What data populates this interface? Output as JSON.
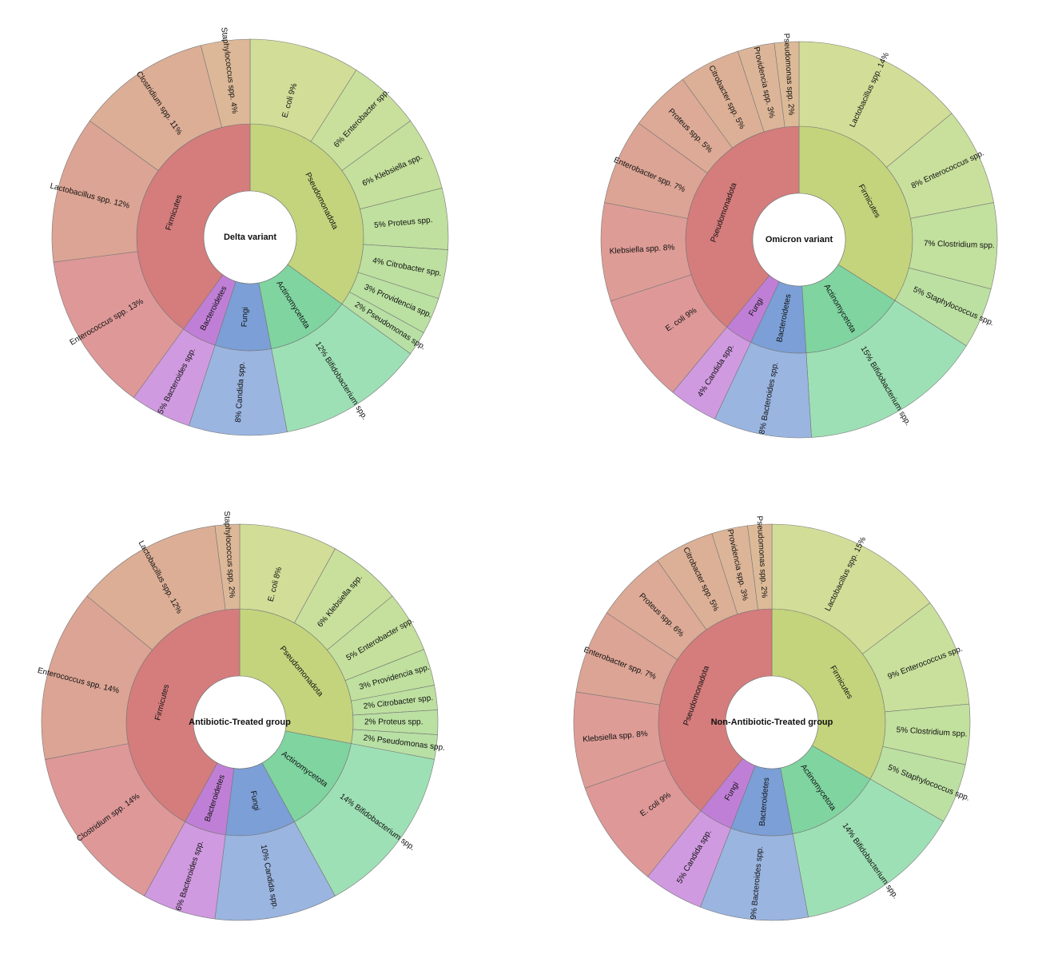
{
  "chart_data": [
    {
      "type": "sunburst",
      "title": "Delta variant",
      "inner": [
        {
          "name": "Pseudomonadota",
          "color": "#c3d47c"
        },
        {
          "name": "Actinomycetota",
          "color": "#7fd4a0"
        },
        {
          "name": "Fungi",
          "color": "#7b9fd6"
        },
        {
          "name": "Bacteroidetes",
          "color": "#c07fd6"
        },
        {
          "name": "Firmicutes",
          "color": "#d57c7c"
        }
      ],
      "outer": [
        {
          "label": "E. coli  9%",
          "value": 9,
          "parent": "Pseudomonadota",
          "color": "#d2dd98"
        },
        {
          "label": "6%  Enterobacter spp.",
          "value": 6,
          "parent": "Pseudomonadota",
          "color": "#c8e09c"
        },
        {
          "label": "6%  Klebsiella spp.",
          "value": 6,
          "parent": "Pseudomonadota",
          "color": "#c4e09c"
        },
        {
          "label": "5%  Proteus spp.",
          "value": 5,
          "parent": "Pseudomonadota",
          "color": "#bfe09e"
        },
        {
          "label": "4%  Citrobacter spp.",
          "value": 4,
          "parent": "Pseudomonadota",
          "color": "#bde0a0"
        },
        {
          "label": "3%  Providencia spp.",
          "value": 3,
          "parent": "Pseudomonadota",
          "color": "#bae0a2"
        },
        {
          "label": "2%  Pseudomonas spp.",
          "value": 2,
          "parent": "Pseudomonadota",
          "color": "#b8e0a4"
        },
        {
          "label": "12%  Bifidobacterium spp.",
          "value": 12,
          "parent": "Actinomycetota",
          "color": "#9ee0b5"
        },
        {
          "label": "8%  Candida spp.",
          "value": 8,
          "parent": "Fungi",
          "color": "#9ab5e0"
        },
        {
          "label": "5%  Bacteroides spp.",
          "value": 5,
          "parent": "Bacteroidetes",
          "color": "#d09ae0"
        },
        {
          "label": "Enterococcus spp.  13%",
          "value": 13,
          "parent": "Firmicutes",
          "color": "#de9898"
        },
        {
          "label": "Lactobacillus spp.  12%",
          "value": 12,
          "parent": "Firmicutes",
          "color": "#dca494"
        },
        {
          "label": "Clostridium spp.  11%",
          "value": 11,
          "parent": "Firmicutes",
          "color": "#dcae96"
        },
        {
          "label": "Staphylococcus spp.  4%",
          "value": 4,
          "parent": "Firmicutes",
          "color": "#dcb898"
        }
      ]
    },
    {
      "type": "sunburst",
      "title": "Omicron variant",
      "inner": [
        {
          "name": "Firmicutes",
          "color": "#c3d47c"
        },
        {
          "name": "Actinomycetota",
          "color": "#7fd4a0"
        },
        {
          "name": "Bacteroidetes",
          "color": "#7b9fd6"
        },
        {
          "name": "Fungi",
          "color": "#c07fd6"
        },
        {
          "name": "Pseudomonadota",
          "color": "#d57c7c"
        }
      ],
      "outer": [
        {
          "label": "Lactobacillus spp.  14%",
          "value": 14,
          "parent": "Firmicutes",
          "color": "#d2dd98"
        },
        {
          "label": "8%  Enterococcus spp.",
          "value": 8,
          "parent": "Firmicutes",
          "color": "#c8e09c"
        },
        {
          "label": "7%  Clostridium spp.",
          "value": 7,
          "parent": "Firmicutes",
          "color": "#c2e09e"
        },
        {
          "label": "5%  Staphylococcus spp.",
          "value": 5,
          "parent": "Firmicutes",
          "color": "#bce0a2"
        },
        {
          "label": "15%  Bifidobacterium spp.",
          "value": 15,
          "parent": "Actinomycetota",
          "color": "#9ee0b5"
        },
        {
          "label": "8%  Bacteroides spp.",
          "value": 8,
          "parent": "Bacteroidetes",
          "color": "#9ab5e0"
        },
        {
          "label": "4%  Candida spp.",
          "value": 4,
          "parent": "Fungi",
          "color": "#d09ae0"
        },
        {
          "label": "E. coli  9%",
          "value": 9,
          "parent": "Pseudomonadota",
          "color": "#de9898"
        },
        {
          "label": "Klebsiella spp.  8%",
          "value": 8,
          "parent": "Pseudomonadota",
          "color": "#de9c96"
        },
        {
          "label": "Enterobacter spp.  7%",
          "value": 7,
          "parent": "Pseudomonadota",
          "color": "#dca494"
        },
        {
          "label": "Proteus spp.  5%",
          "value": 5,
          "parent": "Pseudomonadota",
          "color": "#dcaa96"
        },
        {
          "label": "Citrobacter spp.  5%",
          "value": 5,
          "parent": "Pseudomonadota",
          "color": "#dcb096"
        },
        {
          "label": "Providencia spp.  3%",
          "value": 3,
          "parent": "Pseudomonadota",
          "color": "#dcb598"
        },
        {
          "label": "Pseudomonas spp.  2%",
          "value": 2,
          "parent": "Pseudomonadota",
          "color": "#dcba98"
        }
      ]
    },
    {
      "type": "sunburst",
      "title": "Antibiotic-Treated group",
      "inner": [
        {
          "name": "Pseudomonadota",
          "color": "#c3d47c"
        },
        {
          "name": "Actinomycetota",
          "color": "#7fd4a0"
        },
        {
          "name": "Fungi",
          "color": "#7b9fd6"
        },
        {
          "name": "Bacteroidetes",
          "color": "#c07fd6"
        },
        {
          "name": "Firmicutes",
          "color": "#d57c7c"
        }
      ],
      "outer": [
        {
          "label": "E. coli  8%",
          "value": 8,
          "parent": "Pseudomonadota",
          "color": "#d2dd98"
        },
        {
          "label": "6%  Klebsiella spp.",
          "value": 6,
          "parent": "Pseudomonadota",
          "color": "#c8e09c"
        },
        {
          "label": "5%  Enterobacter spp.",
          "value": 5,
          "parent": "Pseudomonadota",
          "color": "#c4e09c"
        },
        {
          "label": "3%  Providencia spp.",
          "value": 3,
          "parent": "Pseudomonadota",
          "color": "#bfe09e"
        },
        {
          "label": "2%  Citrobacter spp.",
          "value": 2,
          "parent": "Pseudomonadota",
          "color": "#bde0a0"
        },
        {
          "label": "2%  Proteus spp.",
          "value": 2,
          "parent": "Pseudomonadota",
          "color": "#bae0a2"
        },
        {
          "label": "2%  Pseudomonas spp.",
          "value": 2,
          "parent": "Pseudomonadota",
          "color": "#b8e0a4"
        },
        {
          "label": "14%  Bifidobacterium spp.",
          "value": 14,
          "parent": "Actinomycetota",
          "color": "#9ee0b5"
        },
        {
          "label": "10%  Candida spp.",
          "value": 10,
          "parent": "Fungi",
          "color": "#9ab5e0"
        },
        {
          "label": "6%  Bacteroides spp.",
          "value": 6,
          "parent": "Bacteroidetes",
          "color": "#d09ae0"
        },
        {
          "label": "Clostridium spp.  14%",
          "value": 14,
          "parent": "Firmicutes",
          "color": "#de9898"
        },
        {
          "label": "Enterococcus spp.  14%",
          "value": 14,
          "parent": "Firmicutes",
          "color": "#dca494"
        },
        {
          "label": "Lactobacillus spp.  12%",
          "value": 12,
          "parent": "Firmicutes",
          "color": "#dcae96"
        },
        {
          "label": "Staphylococcus spp.  2%",
          "value": 2,
          "parent": "Firmicutes",
          "color": "#dcb898"
        }
      ]
    },
    {
      "type": "sunburst",
      "title": "Non-Antibiotic-Treated group",
      "inner": [
        {
          "name": "Firmicutes",
          "color": "#c3d47c"
        },
        {
          "name": "Actinomycetota",
          "color": "#7fd4a0"
        },
        {
          "name": "Bacteroidetes",
          "color": "#7b9fd6"
        },
        {
          "name": "Fungi",
          "color": "#c07fd6"
        },
        {
          "name": "Pseudomonadota",
          "color": "#d57c7c"
        }
      ],
      "outer": [
        {
          "label": "Lactobacillus spp.  15%",
          "value": 15,
          "parent": "Firmicutes",
          "color": "#d2dd98"
        },
        {
          "label": "9%  Enterococcus spp.",
          "value": 9,
          "parent": "Firmicutes",
          "color": "#c8e09c"
        },
        {
          "label": "5%  Clostridium spp.",
          "value": 5,
          "parent": "Firmicutes",
          "color": "#c2e09e"
        },
        {
          "label": "5%  Staphylococcus spp.",
          "value": 5,
          "parent": "Firmicutes",
          "color": "#bce0a2"
        },
        {
          "label": "14%  Bifidobacterium spp.",
          "value": 14,
          "parent": "Actinomycetota",
          "color": "#9ee0b5"
        },
        {
          "label": "9%  Bacteroides spp.",
          "value": 9,
          "parent": "Bacteroidetes",
          "color": "#9ab5e0"
        },
        {
          "label": "5%  Candida spp.",
          "value": 5,
          "parent": "Fungi",
          "color": "#d09ae0"
        },
        {
          "label": "E. coli  9%",
          "value": 9,
          "parent": "Pseudomonadota",
          "color": "#de9898"
        },
        {
          "label": "Klebsiella spp.  8%",
          "value": 8,
          "parent": "Pseudomonadota",
          "color": "#de9c96"
        },
        {
          "label": "Enterobacter spp.  7%",
          "value": 7,
          "parent": "Pseudomonadota",
          "color": "#dca494"
        },
        {
          "label": "Proteus spp.  6%",
          "value": 6,
          "parent": "Pseudomonadota",
          "color": "#dcaa96"
        },
        {
          "label": "Citrobacter spp.  5%",
          "value": 5,
          "parent": "Pseudomonadota",
          "color": "#dcb096"
        },
        {
          "label": "Providencia spp.  3%",
          "value": 3,
          "parent": "Pseudomonadota",
          "color": "#dcb598"
        },
        {
          "label": "Pseudomonas spp.  2%",
          "value": 2,
          "parent": "Pseudomonadota",
          "color": "#dcba98"
        }
      ]
    }
  ]
}
